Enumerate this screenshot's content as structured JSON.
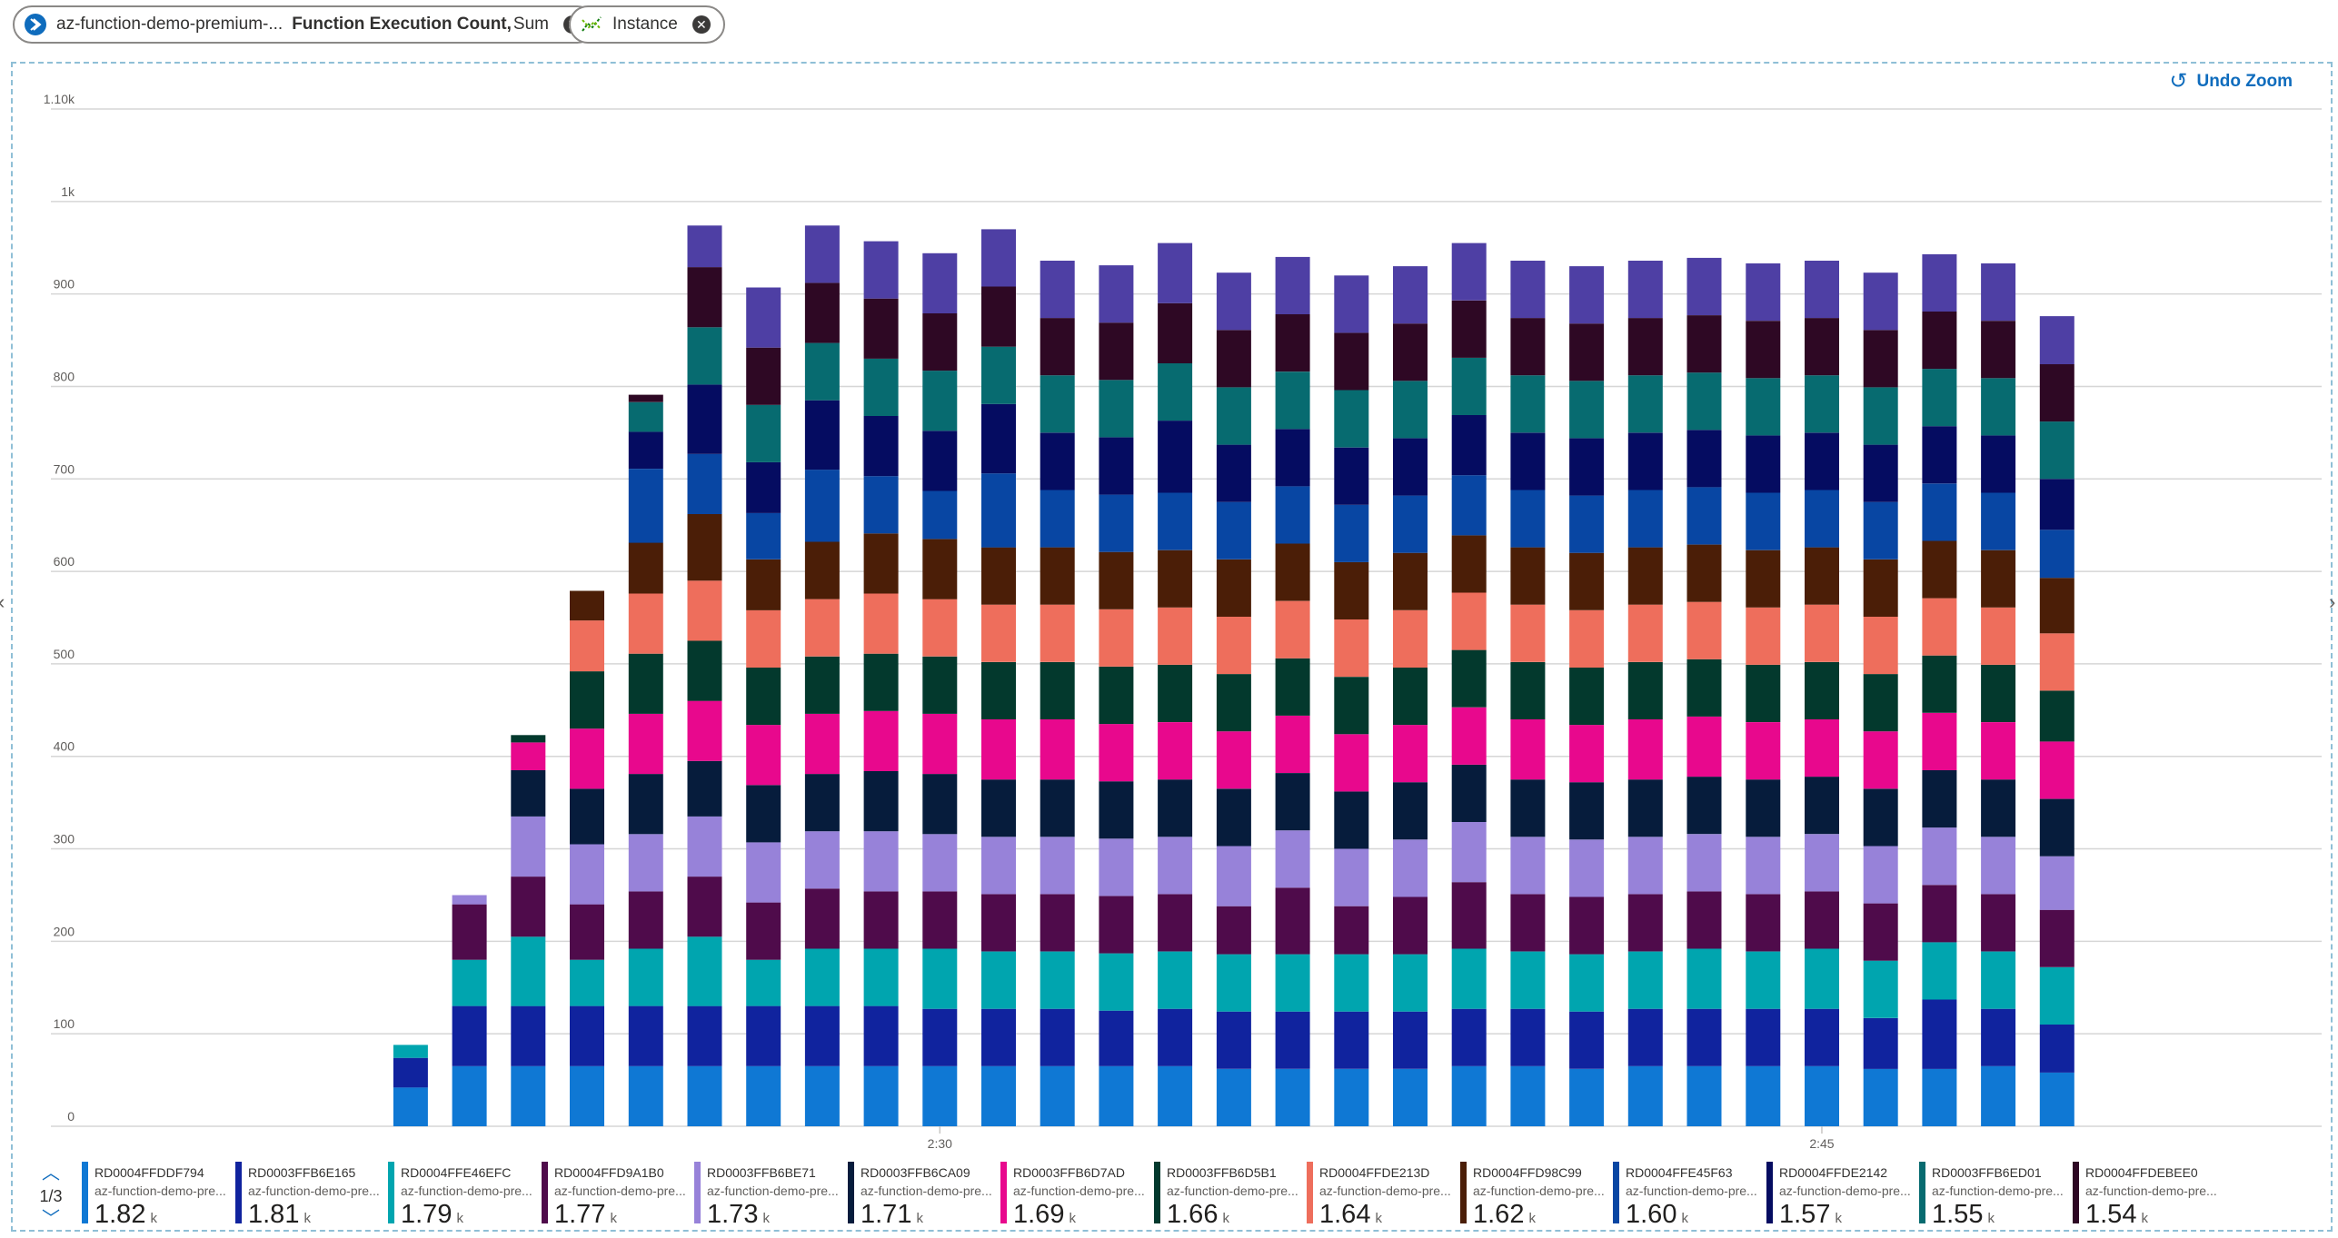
{
  "header": {
    "resource_pill": {
      "resource": "az-function-demo-premium-...",
      "metric": "Function Execution Count,",
      "aggregation": "Sum",
      "close_glyph": "✕"
    },
    "split_pill": {
      "label": "Instance",
      "close_glyph": "✕"
    }
  },
  "toolbar": {
    "undo_zoom_label": "Undo Zoom",
    "undo_glyph": "↺"
  },
  "legend": {
    "page": "1/3",
    "items": [
      {
        "name": "RD0004FFDDF794",
        "resource": "az-function-demo-pre...",
        "value": "1.82",
        "unit": "k",
        "color": "#0f78d4"
      },
      {
        "name": "RD0003FFB6E165",
        "resource": "az-function-demo-pre...",
        "value": "1.81",
        "unit": "k",
        "color": "#10239e"
      },
      {
        "name": "RD0004FFE46EFC",
        "resource": "az-function-demo-pre...",
        "value": "1.79",
        "unit": "k",
        "color": "#00a5af"
      },
      {
        "name": "RD0004FFD9A1B0",
        "resource": "az-function-demo-pre...",
        "value": "1.77",
        "unit": "k",
        "color": "#4f0b4b"
      },
      {
        "name": "RD0003FFB6BE71",
        "resource": "az-function-demo-pre...",
        "value": "1.73",
        "unit": "k",
        "color": "#9782d9"
      },
      {
        "name": "RD0003FFB6CA09",
        "resource": "az-function-demo-pre...",
        "value": "1.71",
        "unit": "k",
        "color": "#061c3c"
      },
      {
        "name": "RD0003FFB6D7AD",
        "resource": "az-function-demo-pre...",
        "value": "1.69",
        "unit": "k",
        "color": "#e8088d"
      },
      {
        "name": "RD0003FFB6D5B1",
        "resource": "az-function-demo-pre...",
        "value": "1.66",
        "unit": "k",
        "color": "#03392d"
      },
      {
        "name": "RD0004FFDE213D",
        "resource": "az-function-demo-pre...",
        "value": "1.64",
        "unit": "k",
        "color": "#ee6e5c"
      },
      {
        "name": "RD0004FFD98C99",
        "resource": "az-function-demo-pre...",
        "value": "1.62",
        "unit": "k",
        "color": "#4b1e07"
      },
      {
        "name": "RD0004FFE45F63",
        "resource": "az-function-demo-pre...",
        "value": "1.60",
        "unit": "k",
        "color": "#0846a3"
      },
      {
        "name": "RD0004FFDE2142",
        "resource": "az-function-demo-pre...",
        "value": "1.57",
        "unit": "k",
        "color": "#050c61"
      },
      {
        "name": "RD0003FFB6ED01",
        "resource": "az-function-demo-pre...",
        "value": "1.55",
        "unit": "k",
        "color": "#076b70"
      },
      {
        "name": "RD0004FFDEBEE0",
        "resource": "az-function-demo-pre...",
        "value": "1.54",
        "unit": "k",
        "color": "#2e0824"
      }
    ]
  },
  "chart_data": {
    "type": "bar",
    "stacked": true,
    "title": "",
    "xlabel": "",
    "ylabel": "",
    "ylim": [
      0,
      1100
    ],
    "y_ticks": [
      0,
      100,
      200,
      300,
      400,
      500,
      600,
      700,
      800,
      900,
      1000,
      1100
    ],
    "y_tick_labels": [
      "0",
      "100",
      "200",
      "300",
      "400",
      "500",
      "600",
      "700",
      "800",
      "900",
      "1k",
      "1.10k"
    ],
    "x_ticks": [
      {
        "slot": 14,
        "label": "2:30"
      },
      {
        "slot": 29,
        "label": "2:45"
      }
    ],
    "slot_count": 38,
    "grid": true,
    "legend_position": "bottom",
    "series_colors": [
      "#0f78d4",
      "#10239e",
      "#00a5af",
      "#4f0b4b",
      "#9782d9",
      "#061c3c",
      "#e8088d",
      "#03392d",
      "#ee6e5c",
      "#4b1e07",
      "#0846a3",
      "#050c61",
      "#076b70",
      "#2e0824",
      "#4e3fa4"
    ],
    "bars": [
      {
        "slot": 5,
        "segments": [
          42,
          32,
          14
        ]
      },
      {
        "slot": 6,
        "segments": [
          65,
          65,
          50,
          60,
          10
        ]
      },
      {
        "slot": 7,
        "segments": [
          65,
          65,
          75,
          65,
          65,
          50,
          30,
          8
        ]
      },
      {
        "slot": 8,
        "segments": [
          65,
          65,
          50,
          60,
          65,
          60,
          65,
          62,
          55,
          32
        ]
      },
      {
        "slot": 9,
        "segments": [
          65,
          65,
          62,
          62,
          62,
          65,
          65,
          65,
          65,
          55,
          80,
          40,
          32,
          8
        ]
      },
      {
        "slot": 10,
        "segments": [
          65,
          65,
          75,
          65,
          65,
          60,
          65,
          65,
          65,
          72,
          65,
          75,
          62,
          65,
          45
        ]
      },
      {
        "slot": 11,
        "segments": [
          65,
          65,
          50,
          62,
          65,
          62,
          65,
          62,
          62,
          55,
          50,
          55,
          62,
          62,
          65
        ]
      },
      {
        "slot": 12,
        "segments": [
          65,
          65,
          62,
          65,
          62,
          62,
          65,
          62,
          62,
          62,
          78,
          75,
          62,
          65,
          62
        ]
      },
      {
        "slot": 13,
        "segments": [
          65,
          65,
          62,
          62,
          65,
          65,
          65,
          62,
          65,
          65,
          62,
          65,
          62,
          65,
          62
        ]
      },
      {
        "slot": 14,
        "segments": [
          65,
          62,
          65,
          62,
          62,
          65,
          65,
          62,
          62,
          65,
          52,
          65,
          65,
          62,
          65
        ]
      },
      {
        "slot": 15,
        "segments": [
          65,
          62,
          62,
          62,
          62,
          62,
          65,
          62,
          62,
          62,
          80,
          75,
          62,
          65,
          62
        ]
      },
      {
        "slot": 16,
        "segments": [
          65,
          62,
          62,
          62,
          62,
          62,
          65,
          62,
          62,
          62,
          62,
          62,
          62,
          62,
          62
        ]
      },
      {
        "slot": 17,
        "segments": [
          65,
          60,
          62,
          62,
          62,
          62,
          62,
          62,
          62,
          62,
          62,
          62,
          62,
          62,
          62
        ]
      },
      {
        "slot": 18,
        "segments": [
          65,
          62,
          62,
          62,
          62,
          62,
          62,
          62,
          62,
          62,
          62,
          78,
          62,
          65,
          65
        ]
      },
      {
        "slot": 19,
        "segments": [
          62,
          62,
          62,
          52,
          65,
          62,
          62,
          62,
          62,
          62,
          62,
          62,
          62,
          62,
          62
        ]
      },
      {
        "slot": 20,
        "segments": [
          62,
          62,
          62,
          72,
          62,
          62,
          62,
          62,
          62,
          62,
          62,
          62,
          62,
          62,
          62
        ]
      },
      {
        "slot": 21,
        "segments": [
          62,
          62,
          62,
          52,
          62,
          62,
          62,
          62,
          62,
          62,
          62,
          62,
          62,
          62,
          62
        ]
      },
      {
        "slot": 22,
        "segments": [
          62,
          62,
          62,
          62,
          62,
          62,
          62,
          62,
          62,
          62,
          62,
          62,
          62,
          62,
          62
        ]
      },
      {
        "slot": 23,
        "segments": [
          65,
          62,
          65,
          72,
          65,
          62,
          62,
          62,
          62,
          62,
          65,
          65,
          62,
          62,
          62
        ]
      },
      {
        "slot": 24,
        "segments": [
          65,
          62,
          62,
          62,
          62,
          62,
          65,
          62,
          62,
          62,
          62,
          62,
          62,
          62,
          62
        ]
      },
      {
        "slot": 25,
        "segments": [
          62,
          62,
          62,
          62,
          62,
          62,
          62,
          62,
          62,
          62,
          62,
          62,
          62,
          62,
          62
        ]
      },
      {
        "slot": 26,
        "segments": [
          65,
          62,
          62,
          62,
          62,
          62,
          65,
          62,
          62,
          62,
          62,
          62,
          62,
          62,
          62
        ]
      },
      {
        "slot": 27,
        "segments": [
          65,
          62,
          65,
          62,
          62,
          62,
          65,
          62,
          62,
          62,
          62,
          62,
          62,
          62,
          62
        ]
      },
      {
        "slot": 28,
        "segments": [
          65,
          62,
          62,
          62,
          62,
          62,
          62,
          62,
          62,
          62,
          62,
          62,
          62,
          62,
          62
        ]
      },
      {
        "slot": 29,
        "segments": [
          65,
          62,
          65,
          62,
          62,
          62,
          62,
          62,
          62,
          62,
          62,
          62,
          62,
          62,
          62
        ]
      },
      {
        "slot": 30,
        "segments": [
          62,
          55,
          62,
          62,
          62,
          62,
          62,
          62,
          62,
          62,
          62,
          62,
          62,
          62,
          62
        ]
      },
      {
        "slot": 31,
        "segments": [
          62,
          75,
          62,
          62,
          62,
          62,
          62,
          62,
          62,
          62,
          62,
          62,
          62,
          62,
          62
        ]
      },
      {
        "slot": 32,
        "segments": [
          65,
          62,
          62,
          62,
          62,
          62,
          62,
          62,
          62,
          62,
          62,
          62,
          62,
          62,
          62
        ]
      },
      {
        "slot": 33,
        "segments": [
          58,
          52,
          62,
          62,
          58,
          62,
          62,
          55,
          62,
          60,
          52,
          55,
          62,
          62,
          52
        ]
      }
    ]
  }
}
